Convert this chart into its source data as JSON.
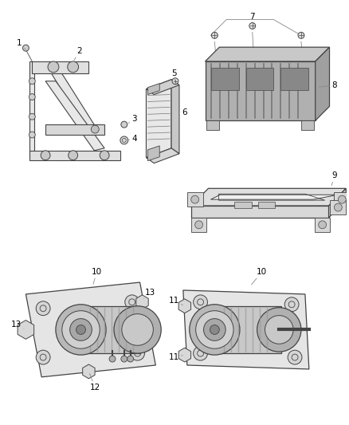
{
  "bg_color": "#ffffff",
  "line_color": "#444444",
  "label_color": "#000000",
  "label_fontsize": 7.5,
  "fig_width": 4.38,
  "fig_height": 5.33
}
